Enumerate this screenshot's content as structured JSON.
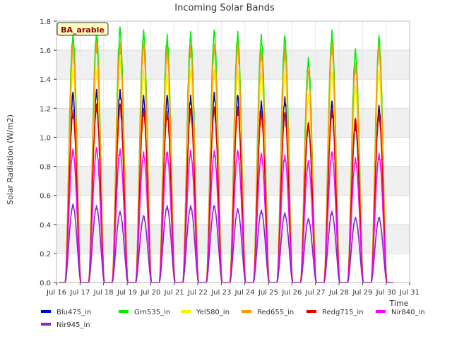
{
  "chart_data": {
    "type": "line",
    "title": "Incoming Solar Bands",
    "xlabel": "Time",
    "ylabel": "Solar Radiation (W/m2)",
    "site_label": "BA_arable",
    "xlim": [
      16,
      31
    ],
    "ylim": [
      0.0,
      1.8
    ],
    "x_ticks": [
      16,
      17,
      18,
      19,
      20,
      21,
      22,
      23,
      24,
      25,
      26,
      27,
      28,
      29,
      30,
      31
    ],
    "x_tick_labels": [
      "Jul 16",
      "Jul 17",
      "Jul 18",
      "Jul 19",
      "Jul 20",
      "Jul 21",
      "Jul 22",
      "Jul 23",
      "Jul 24",
      "Jul 25",
      "Jul 26",
      "Jul 27",
      "Jul 28",
      "Jul 29",
      "Jul 30",
      "Jul 31"
    ],
    "y_ticks": [
      0.0,
      0.2,
      0.4,
      0.6,
      0.8,
      1.0,
      1.2,
      1.4,
      1.6,
      1.8
    ],
    "y_tick_labels": [
      "0.0",
      "0.2",
      "0.4",
      "0.6",
      "0.8",
      "1.0",
      "1.2",
      "1.4",
      "1.6",
      "1.8"
    ],
    "grid": "horizontal bands",
    "legend_position": "bottom",
    "days": [
      16.7,
      17.7,
      18.7,
      19.7,
      20.7,
      21.7,
      22.7,
      23.7,
      24.7,
      25.7,
      26.7,
      27.7,
      28.7,
      29.7
    ],
    "series": [
      {
        "name": "Blu475_in",
        "color": "#0000cc",
        "daily_peaks": [
          1.31,
          1.33,
          1.33,
          1.29,
          1.29,
          1.29,
          1.31,
          1.29,
          1.25,
          1.28,
          1.1,
          1.25,
          1.1,
          1.22
        ]
      },
      {
        "name": "Grn535_in",
        "color": "#00ee00",
        "daily_peaks": [
          1.73,
          1.75,
          1.76,
          1.74,
          1.71,
          1.73,
          1.74,
          1.73,
          1.71,
          1.7,
          1.55,
          1.74,
          1.61,
          1.7
        ]
      },
      {
        "name": "Yel580_in",
        "color": "#ffee00",
        "daily_peaks": [
          1.48,
          1.46,
          1.55,
          1.46,
          1.44,
          1.46,
          1.47,
          1.46,
          1.44,
          1.44,
          1.3,
          1.45,
          1.35,
          1.46
        ]
      },
      {
        "name": "Red655_in",
        "color": "#ff9900",
        "daily_peaks": [
          1.64,
          1.66,
          1.65,
          1.65,
          1.62,
          1.63,
          1.64,
          1.64,
          1.61,
          1.61,
          1.46,
          1.65,
          1.51,
          1.63
        ]
      },
      {
        "name": "Redg715_in",
        "color": "#dd0000",
        "daily_peaks": [
          1.19,
          1.23,
          1.23,
          1.2,
          1.18,
          1.2,
          1.21,
          1.21,
          1.18,
          1.17,
          1.1,
          1.19,
          1.13,
          1.17
        ]
      },
      {
        "name": "Nir840_in",
        "color": "#ff00ff",
        "daily_peaks": [
          0.92,
          0.93,
          0.92,
          0.9,
          0.9,
          0.91,
          0.91,
          0.91,
          0.89,
          0.88,
          0.84,
          0.9,
          0.86,
          0.89
        ]
      },
      {
        "name": "Nir945_in",
        "color": "#8822cc",
        "daily_peaks": [
          0.54,
          0.53,
          0.49,
          0.46,
          0.53,
          0.53,
          0.53,
          0.51,
          0.5,
          0.48,
          0.44,
          0.49,
          0.45,
          0.45
        ]
      }
    ]
  }
}
